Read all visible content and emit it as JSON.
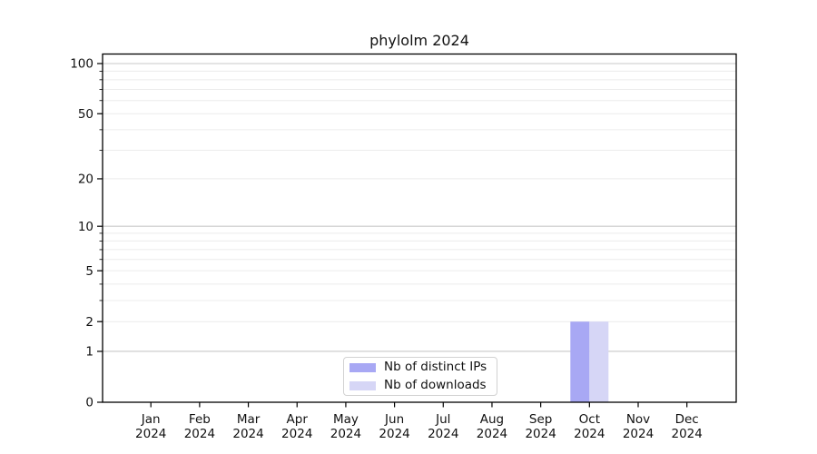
{
  "title": "phylolm 2024",
  "chart_data": {
    "type": "bar",
    "title": "phylolm 2024",
    "x_months": [
      "Jan",
      "Feb",
      "Mar",
      "Apr",
      "May",
      "Jun",
      "Jul",
      "Aug",
      "Sep",
      "Oct",
      "Nov",
      "Dec"
    ],
    "x_year": "2024",
    "series": [
      {
        "name": "Nb of distinct IPs",
        "color": "#a8a8f4",
        "values": [
          0,
          0,
          0,
          0,
          0,
          0,
          0,
          0,
          0,
          2,
          0,
          0
        ]
      },
      {
        "name": "Nb of downloads",
        "color": "#d6d6f6",
        "values": [
          0,
          0,
          0,
          0,
          0,
          0,
          0,
          0,
          0,
          2,
          0,
          0
        ]
      }
    ],
    "y_axis": {
      "scale": "log10(1+x)",
      "ticks": [
        0,
        1,
        2,
        5,
        10,
        20,
        50,
        100
      ],
      "major_gridlines": [
        1,
        10,
        100
      ],
      "minor_gridlines": [
        2,
        3,
        4,
        5,
        6,
        7,
        8,
        9,
        20,
        30,
        40,
        50,
        60,
        70,
        80,
        90
      ],
      "top_value": 114
    },
    "legend": {
      "position": "lower center"
    },
    "style": {
      "major_grid_color": "#c8c8c8",
      "minor_grid_color": "#ececec",
      "spine_color": "#000000",
      "text_color": "#111111",
      "background": "#ffffff"
    }
  }
}
